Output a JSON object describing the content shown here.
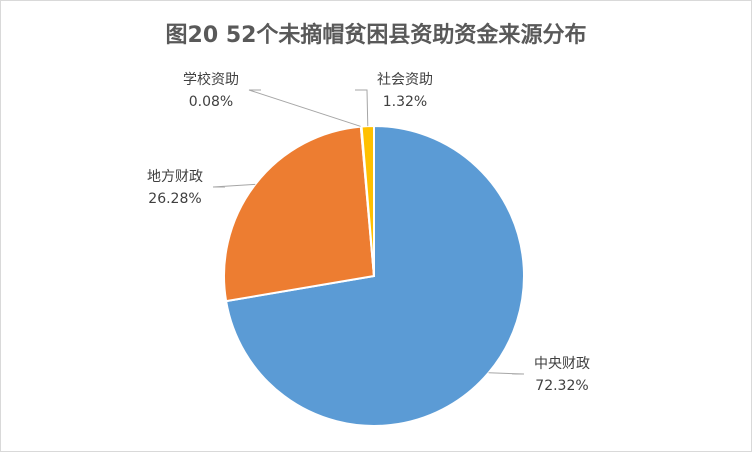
{
  "chart_data": {
    "type": "pie",
    "title": "图20 52个未摘帽贫困县资助资金来源分布",
    "categories": [
      "中央财政",
      "地方财政",
      "学校资助",
      "社会资助"
    ],
    "values": [
      72.32,
      26.28,
      0.08,
      1.32
    ],
    "value_labels": [
      "72.32%",
      "26.28%",
      "0.08%",
      "1.32%"
    ],
    "colors": [
      "#5b9bd5",
      "#ed7d31",
      "#a5a5a5",
      "#ffc000"
    ]
  }
}
